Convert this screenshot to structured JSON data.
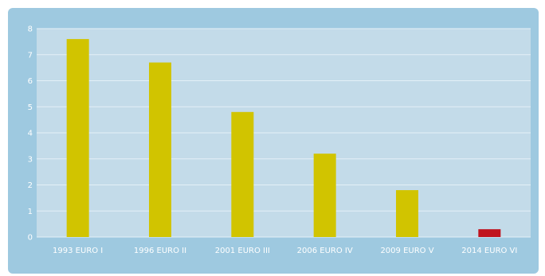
{
  "chart_data": {
    "type": "bar",
    "categories": [
      "1993 EURO I",
      "1996 EURO II",
      "2001 EURO III",
      "2006 EURO IV",
      "2009 EURO V",
      "2014 EURO VI"
    ],
    "values": [
      7.6,
      6.7,
      4.8,
      3.2,
      1.8,
      0.3
    ],
    "ylim": [
      0,
      8
    ],
    "yticks": [
      0,
      1,
      2,
      3,
      4,
      5,
      6,
      7,
      8
    ],
    "grid": true,
    "colors": {
      "bar": "#d1c400",
      "highlight_bar": "#c0141e",
      "plot_background": "#c3dbe9",
      "frame_background": "#9ec9e0",
      "gridline": "#e4f0f7",
      "text": "#ffffff"
    },
    "highlight_index": 5
  }
}
